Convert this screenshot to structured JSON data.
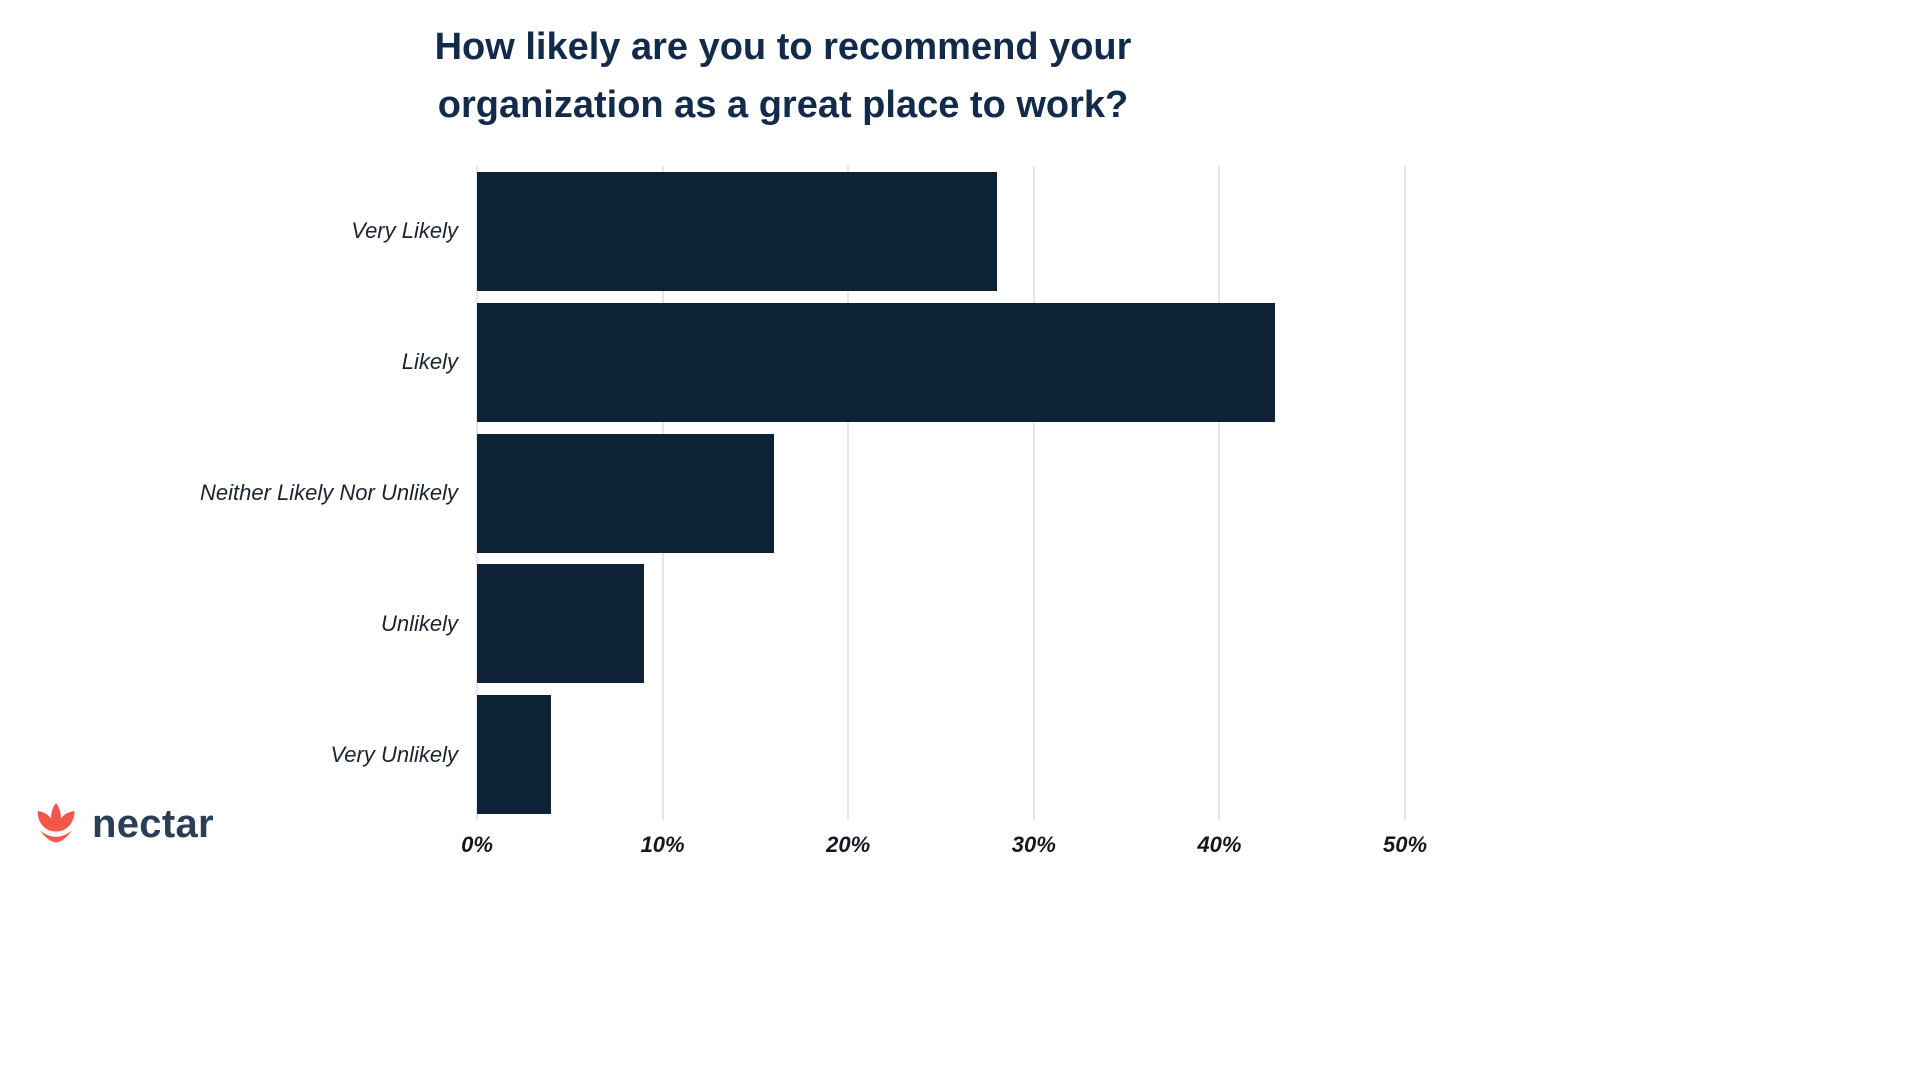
{
  "title": {
    "lines": [
      "How likely are you to recommend your",
      "organization as a great place to work?"
    ]
  },
  "chart_data": {
    "type": "bar",
    "orientation": "horizontal",
    "title": "How likely are you to recommend your organization as a great place to work?",
    "categories": [
      "Very Likely",
      "Likely",
      "Neither Likely Nor Unlikely",
      "Unlikely",
      "Very Unlikely"
    ],
    "values": [
      28,
      43,
      16,
      9,
      4
    ],
    "unit": "%",
    "xlabel": "",
    "ylabel": "",
    "xlim": [
      0,
      50
    ],
    "xticks": [
      0,
      10,
      20,
      30,
      40,
      50
    ],
    "xtick_labels": [
      "0%",
      "10%",
      "20%",
      "30%",
      "40%",
      "50%"
    ],
    "grid": "vertical-gridlines",
    "legend": "none"
  },
  "colors": {
    "background": "#ffffff",
    "bar": "#0e2236",
    "title": "#132b4a",
    "category_label": "#1c2430",
    "tick_label": "#14181f",
    "gridline": "#e6e6e6",
    "logo_accent": "#f4564a",
    "logo_text": "#2c3e55"
  },
  "logo": {
    "text": "nectar",
    "icon": "lotus-flower-icon"
  }
}
